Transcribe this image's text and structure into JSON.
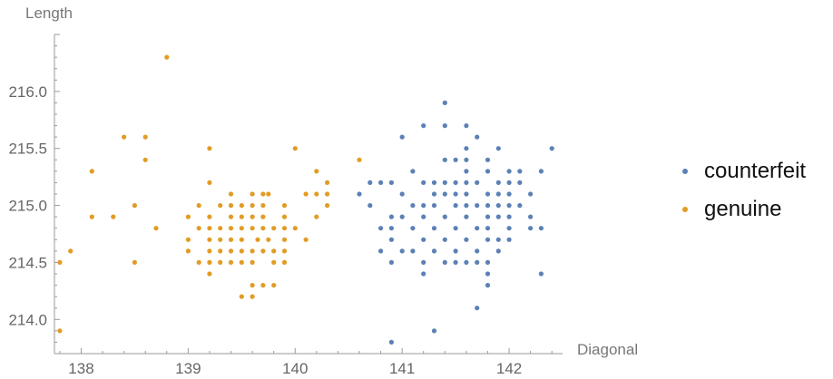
{
  "chart_data": {
    "type": "scatter",
    "xlabel": "Diagonal",
    "ylabel": "Length",
    "xlim": [
      137.75,
      142.5
    ],
    "ylim": [
      213.7,
      216.5
    ],
    "x_ticks": [
      "138",
      "139",
      "140",
      "141",
      "142"
    ],
    "x_tick_values": [
      138,
      139,
      140,
      141,
      142
    ],
    "y_ticks": [
      "214.0",
      "214.5",
      "215.0",
      "215.5",
      "216.0"
    ],
    "y_tick_values": [
      214.0,
      214.5,
      215.0,
      215.5,
      216.0
    ],
    "legend_position": "right",
    "series": [
      {
        "name": "counterfeit",
        "color": "#5b81b5",
        "points": [
          [
            141.4,
            215.9
          ],
          [
            141.2,
            215.7
          ],
          [
            141.4,
            215.7
          ],
          [
            141.6,
            215.7
          ],
          [
            141.0,
            215.6
          ],
          [
            141.7,
            215.6
          ],
          [
            141.6,
            215.5
          ],
          [
            141.9,
            215.5
          ],
          [
            142.4,
            215.5
          ],
          [
            141.4,
            215.4
          ],
          [
            141.5,
            215.4
          ],
          [
            141.6,
            215.4
          ],
          [
            141.8,
            215.4
          ],
          [
            141.1,
            215.3
          ],
          [
            141.6,
            215.3
          ],
          [
            141.8,
            215.3
          ],
          [
            142.0,
            215.3
          ],
          [
            142.1,
            215.3
          ],
          [
            142.3,
            215.3
          ],
          [
            140.7,
            215.2
          ],
          [
            140.8,
            215.2
          ],
          [
            140.9,
            215.2
          ],
          [
            141.2,
            215.2
          ],
          [
            141.3,
            215.2
          ],
          [
            141.4,
            215.2
          ],
          [
            141.5,
            215.2
          ],
          [
            141.6,
            215.2
          ],
          [
            141.7,
            215.2
          ],
          [
            141.9,
            215.2
          ],
          [
            142.0,
            215.2
          ],
          [
            142.1,
            215.2
          ],
          [
            140.6,
            215.1
          ],
          [
            141.0,
            215.1
          ],
          [
            141.3,
            215.1
          ],
          [
            141.4,
            215.1
          ],
          [
            141.5,
            215.1
          ],
          [
            141.6,
            215.1
          ],
          [
            141.8,
            215.1
          ],
          [
            141.9,
            215.1
          ],
          [
            142.0,
            215.1
          ],
          [
            142.2,
            215.1
          ],
          [
            140.7,
            215.0
          ],
          [
            141.1,
            215.0
          ],
          [
            141.2,
            215.0
          ],
          [
            141.3,
            215.0
          ],
          [
            141.5,
            215.0
          ],
          [
            141.6,
            215.0
          ],
          [
            141.7,
            215.0
          ],
          [
            141.8,
            215.0
          ],
          [
            141.9,
            215.0
          ],
          [
            142.0,
            215.0
          ],
          [
            142.1,
            215.0
          ],
          [
            140.9,
            214.9
          ],
          [
            141.0,
            214.9
          ],
          [
            141.2,
            214.9
          ],
          [
            141.4,
            214.9
          ],
          [
            141.6,
            214.9
          ],
          [
            141.8,
            214.9
          ],
          [
            141.9,
            214.9
          ],
          [
            142.0,
            214.9
          ],
          [
            142.2,
            214.9
          ],
          [
            140.8,
            214.8
          ],
          [
            140.9,
            214.8
          ],
          [
            141.1,
            214.8
          ],
          [
            141.3,
            214.8
          ],
          [
            141.5,
            214.8
          ],
          [
            141.7,
            214.8
          ],
          [
            141.8,
            214.8
          ],
          [
            142.0,
            214.8
          ],
          [
            142.2,
            214.8
          ],
          [
            142.3,
            214.8
          ],
          [
            140.9,
            214.7
          ],
          [
            141.2,
            214.7
          ],
          [
            141.4,
            214.7
          ],
          [
            141.6,
            214.7
          ],
          [
            141.8,
            214.7
          ],
          [
            141.9,
            214.7
          ],
          [
            142.0,
            214.7
          ],
          [
            140.8,
            214.6
          ],
          [
            141.0,
            214.6
          ],
          [
            141.1,
            214.6
          ],
          [
            141.3,
            214.6
          ],
          [
            141.5,
            214.6
          ],
          [
            141.7,
            214.6
          ],
          [
            141.9,
            214.6
          ],
          [
            140.9,
            214.5
          ],
          [
            141.2,
            214.5
          ],
          [
            141.4,
            214.5
          ],
          [
            141.5,
            214.5
          ],
          [
            141.6,
            214.5
          ],
          [
            141.7,
            214.5
          ],
          [
            141.8,
            214.5
          ],
          [
            141.2,
            214.4
          ],
          [
            141.8,
            214.4
          ],
          [
            142.3,
            214.4
          ],
          [
            141.8,
            214.3
          ],
          [
            141.7,
            214.1
          ],
          [
            141.3,
            213.9
          ],
          [
            140.9,
            213.8
          ]
        ]
      },
      {
        "name": "genuine",
        "color": "#e19c24",
        "points": [
          [
            138.8,
            216.3
          ],
          [
            138.4,
            215.6
          ],
          [
            138.6,
            215.6
          ],
          [
            138.6,
            215.4
          ],
          [
            139.2,
            215.5
          ],
          [
            140.0,
            215.5
          ],
          [
            140.6,
            215.4
          ],
          [
            138.1,
            215.3
          ],
          [
            140.2,
            215.3
          ],
          [
            139.2,
            215.2
          ],
          [
            140.3,
            215.2
          ],
          [
            140.2,
            215.1
          ],
          [
            139.4,
            215.1
          ],
          [
            139.6,
            215.1
          ],
          [
            139.7,
            215.1
          ],
          [
            139.75,
            215.1
          ],
          [
            140.1,
            215.1
          ],
          [
            140.3,
            215.1
          ],
          [
            138.5,
            215.0
          ],
          [
            139.1,
            215.0
          ],
          [
            139.3,
            215.0
          ],
          [
            139.4,
            215.0
          ],
          [
            139.5,
            215.0
          ],
          [
            139.6,
            215.0
          ],
          [
            139.7,
            215.0
          ],
          [
            139.9,
            215.0
          ],
          [
            140.3,
            215.0
          ],
          [
            138.1,
            214.9
          ],
          [
            138.3,
            214.9
          ],
          [
            139.0,
            214.9
          ],
          [
            139.2,
            214.9
          ],
          [
            139.4,
            214.9
          ],
          [
            139.5,
            214.9
          ],
          [
            139.6,
            214.9
          ],
          [
            139.7,
            214.9
          ],
          [
            139.9,
            214.9
          ],
          [
            140.2,
            214.9
          ],
          [
            138.7,
            214.8
          ],
          [
            139.1,
            214.8
          ],
          [
            139.2,
            214.8
          ],
          [
            139.3,
            214.8
          ],
          [
            139.4,
            214.8
          ],
          [
            139.5,
            214.8
          ],
          [
            139.6,
            214.8
          ],
          [
            139.7,
            214.8
          ],
          [
            139.8,
            214.8
          ],
          [
            139.9,
            214.8
          ],
          [
            140.0,
            214.8
          ],
          [
            139.0,
            214.7
          ],
          [
            139.2,
            214.7
          ],
          [
            139.3,
            214.7
          ],
          [
            139.4,
            214.7
          ],
          [
            139.5,
            214.7
          ],
          [
            139.65,
            214.7
          ],
          [
            139.75,
            214.7
          ],
          [
            139.9,
            214.7
          ],
          [
            140.1,
            214.7
          ],
          [
            137.9,
            214.6
          ],
          [
            139.0,
            214.6
          ],
          [
            139.2,
            214.6
          ],
          [
            139.3,
            214.6
          ],
          [
            139.4,
            214.6
          ],
          [
            139.5,
            214.6
          ],
          [
            139.6,
            214.6
          ],
          [
            139.7,
            214.6
          ],
          [
            139.8,
            214.6
          ],
          [
            139.9,
            214.6
          ],
          [
            137.8,
            214.5
          ],
          [
            138.5,
            214.5
          ],
          [
            139.1,
            214.5
          ],
          [
            139.2,
            214.5
          ],
          [
            139.3,
            214.5
          ],
          [
            139.4,
            214.5
          ],
          [
            139.5,
            214.5
          ],
          [
            139.6,
            214.5
          ],
          [
            139.8,
            214.5
          ],
          [
            139.9,
            214.5
          ],
          [
            139.2,
            214.4
          ],
          [
            139.6,
            214.3
          ],
          [
            139.7,
            214.3
          ],
          [
            139.8,
            214.3
          ],
          [
            139.5,
            214.2
          ],
          [
            139.6,
            214.2
          ],
          [
            137.8,
            213.9
          ]
        ]
      }
    ]
  }
}
